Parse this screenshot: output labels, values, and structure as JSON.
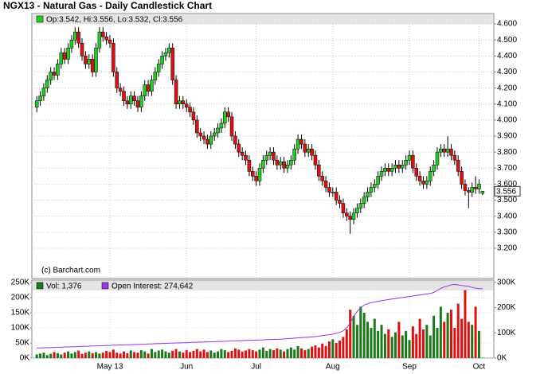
{
  "chart_data": {
    "type": "candlestick",
    "title": "NGX13 - Natural Gas - Daily Candlestick Chart",
    "source": "(c) Barchart.com",
    "legend_text": "Op:3.542, Hi:3.556, Lo:3.532, Cl:3.556",
    "up_color": "#22cc22",
    "down_color": "#e01010",
    "grid": true,
    "x": [
      null,
      null,
      null,
      null,
      null,
      null,
      null,
      null,
      null,
      null,
      null,
      null,
      null,
      null,
      null,
      null,
      null,
      null,
      null,
      null,
      null,
      "May 13",
      null,
      null,
      null,
      null,
      null,
      null,
      null,
      null,
      null,
      null,
      null,
      null,
      null,
      null,
      null,
      null,
      null,
      null,
      null,
      null,
      null,
      "Jun",
      null,
      null,
      null,
      null,
      null,
      null,
      null,
      null,
      null,
      null,
      null,
      null,
      null,
      null,
      null,
      null,
      null,
      null,
      null,
      "Jul",
      null,
      null,
      null,
      null,
      null,
      null,
      null,
      null,
      null,
      null,
      null,
      null,
      null,
      null,
      null,
      null,
      null,
      null,
      null,
      null,
      null,
      "Aug",
      null,
      null,
      null,
      null,
      null,
      null,
      null,
      null,
      null,
      null,
      null,
      null,
      null,
      null,
      null,
      null,
      null,
      null,
      null,
      null,
      null,
      "Sep",
      null,
      null,
      null,
      null,
      null,
      null,
      null,
      null,
      null,
      null,
      null,
      null,
      null,
      null,
      null,
      null,
      null,
      null,
      null,
      "Oct",
      null
    ],
    "open": [
      4.08,
      4.12,
      4.15,
      4.2,
      4.25,
      4.3,
      4.28,
      4.35,
      4.42,
      4.38,
      4.45,
      4.5,
      4.55,
      4.48,
      4.4,
      4.35,
      4.38,
      4.3,
      4.45,
      4.55,
      4.52,
      4.5,
      4.48,
      4.3,
      4.2,
      4.18,
      4.12,
      4.1,
      4.15,
      4.12,
      4.08,
      4.15,
      4.22,
      4.18,
      4.25,
      4.3,
      4.35,
      4.4,
      4.42,
      4.45,
      4.25,
      4.1,
      4.12,
      4.1,
      4.08,
      4.05,
      4.0,
      3.92,
      3.9,
      3.88,
      3.85,
      3.9,
      3.92,
      3.95,
      3.98,
      4.05,
      4.02,
      3.9,
      3.85,
      3.8,
      3.78,
      3.75,
      3.68,
      3.65,
      3.62,
      3.7,
      3.75,
      3.78,
      3.8,
      3.75,
      3.72,
      3.74,
      3.7,
      3.72,
      3.75,
      3.82,
      3.88,
      3.85,
      3.8,
      3.82,
      3.78,
      3.72,
      3.65,
      3.62,
      3.58,
      3.55,
      3.55,
      3.5,
      3.48,
      3.42,
      3.4,
      3.38,
      3.42,
      3.45,
      3.48,
      3.52,
      3.55,
      3.58,
      3.6,
      3.65,
      3.68,
      3.7,
      3.68,
      3.7,
      3.72,
      3.7,
      3.72,
      3.75,
      3.78,
      3.7,
      3.65,
      3.62,
      3.6,
      3.62,
      3.68,
      3.72,
      3.8,
      3.82,
      3.8,
      3.82,
      3.78,
      3.75,
      3.68,
      3.6,
      3.56,
      3.55,
      3.58,
      3.57,
      3.542
    ],
    "high": [
      4.15,
      4.18,
      4.23,
      4.28,
      4.33,
      4.33,
      4.38,
      4.45,
      4.45,
      4.48,
      4.53,
      4.58,
      4.58,
      4.51,
      4.43,
      4.41,
      4.41,
      4.48,
      4.58,
      4.58,
      4.55,
      4.53,
      4.51,
      4.33,
      4.23,
      4.21,
      4.15,
      4.18,
      4.18,
      4.15,
      4.18,
      4.25,
      4.25,
      4.28,
      4.33,
      4.38,
      4.43,
      4.45,
      4.48,
      4.48,
      4.28,
      4.15,
      4.15,
      4.13,
      4.11,
      4.08,
      4.03,
      3.95,
      3.93,
      3.91,
      3.93,
      3.95,
      3.98,
      4.01,
      4.08,
      4.08,
      4.05,
      3.93,
      3.88,
      3.83,
      3.81,
      3.78,
      3.71,
      3.68,
      3.73,
      3.78,
      3.81,
      3.83,
      3.83,
      3.78,
      3.77,
      3.77,
      3.75,
      3.78,
      3.85,
      3.91,
      3.91,
      3.88,
      3.85,
      3.85,
      3.81,
      3.75,
      3.68,
      3.65,
      3.61,
      3.58,
      3.58,
      3.53,
      3.51,
      3.45,
      3.43,
      3.45,
      3.48,
      3.51,
      3.55,
      3.58,
      3.61,
      3.63,
      3.68,
      3.71,
      3.73,
      3.73,
      3.73,
      3.75,
      3.75,
      3.75,
      3.78,
      3.81,
      3.81,
      3.73,
      3.68,
      3.65,
      3.65,
      3.71,
      3.75,
      3.83,
      3.85,
      3.85,
      3.9,
      3.85,
      3.81,
      3.78,
      3.71,
      3.63,
      3.58,
      3.61,
      3.65,
      3.63,
      3.556
    ],
    "low": [
      4.05,
      4.09,
      4.12,
      4.17,
      4.22,
      4.25,
      4.25,
      4.32,
      4.35,
      4.35,
      4.42,
      4.47,
      4.45,
      4.37,
      4.32,
      4.32,
      4.27,
      4.27,
      4.42,
      4.49,
      4.47,
      4.45,
      4.27,
      4.17,
      4.15,
      4.09,
      4.07,
      4.07,
      4.09,
      4.05,
      4.05,
      4.12,
      4.15,
      4.15,
      4.22,
      4.27,
      4.32,
      4.37,
      4.39,
      4.22,
      4.07,
      4.07,
      4.07,
      4.05,
      4.02,
      3.97,
      3.89,
      3.87,
      3.85,
      3.82,
      3.82,
      3.87,
      3.89,
      3.92,
      3.95,
      3.99,
      3.87,
      3.82,
      3.77,
      3.75,
      3.72,
      3.65,
      3.62,
      3.59,
      3.59,
      3.67,
      3.72,
      3.75,
      3.72,
      3.69,
      3.69,
      3.67,
      3.67,
      3.69,
      3.72,
      3.79,
      3.82,
      3.77,
      3.77,
      3.75,
      3.69,
      3.62,
      3.59,
      3.55,
      3.52,
      3.52,
      3.47,
      3.45,
      3.39,
      3.37,
      3.29,
      3.35,
      3.39,
      3.42,
      3.45,
      3.49,
      3.52,
      3.55,
      3.57,
      3.62,
      3.65,
      3.65,
      3.65,
      3.67,
      3.67,
      3.67,
      3.69,
      3.72,
      3.67,
      3.62,
      3.59,
      3.57,
      3.57,
      3.59,
      3.65,
      3.69,
      3.77,
      3.77,
      3.77,
      3.75,
      3.72,
      3.65,
      3.57,
      3.53,
      3.45,
      3.52,
      3.54,
      3.54,
      3.532
    ],
    "close": [
      4.12,
      4.15,
      4.2,
      4.25,
      4.3,
      4.28,
      4.35,
      4.42,
      4.38,
      4.45,
      4.5,
      4.55,
      4.48,
      4.4,
      4.35,
      4.38,
      4.3,
      4.45,
      4.55,
      4.52,
      4.5,
      4.48,
      4.3,
      4.2,
      4.18,
      4.12,
      4.1,
      4.15,
      4.12,
      4.08,
      4.15,
      4.22,
      4.18,
      4.25,
      4.3,
      4.35,
      4.4,
      4.42,
      4.45,
      4.25,
      4.1,
      4.12,
      4.1,
      4.08,
      4.05,
      4.0,
      3.92,
      3.9,
      3.88,
      3.85,
      3.9,
      3.92,
      3.95,
      3.98,
      4.05,
      4.02,
      3.9,
      3.85,
      3.8,
      3.78,
      3.75,
      3.68,
      3.65,
      3.62,
      3.7,
      3.75,
      3.78,
      3.8,
      3.75,
      3.72,
      3.74,
      3.7,
      3.72,
      3.75,
      3.82,
      3.88,
      3.85,
      3.8,
      3.82,
      3.78,
      3.72,
      3.65,
      3.62,
      3.58,
      3.55,
      3.55,
      3.5,
      3.48,
      3.42,
      3.4,
      3.38,
      3.42,
      3.45,
      3.48,
      3.52,
      3.55,
      3.58,
      3.6,
      3.65,
      3.68,
      3.7,
      3.68,
      3.7,
      3.72,
      3.7,
      3.72,
      3.75,
      3.78,
      3.7,
      3.65,
      3.62,
      3.6,
      3.62,
      3.68,
      3.72,
      3.8,
      3.82,
      3.8,
      3.82,
      3.78,
      3.75,
      3.68,
      3.6,
      3.56,
      3.55,
      3.58,
      3.57,
      3.6,
      3.556
    ],
    "ylim": [
      3.011,
      4.665
    ],
    "yticks": [
      {
        "value": 3.2,
        "label": "3.200"
      },
      {
        "value": 3.3,
        "label": "3.300"
      },
      {
        "value": 3.4,
        "label": "3.400"
      },
      {
        "value": 3.5,
        "label": "3.500"
      },
      {
        "value": 3.6,
        "label": "3.600"
      },
      {
        "value": 3.7,
        "label": "3.700"
      },
      {
        "value": 3.8,
        "label": "3.800"
      },
      {
        "value": 3.9,
        "label": "3.900"
      },
      {
        "value": 4.0,
        "label": "4.000"
      },
      {
        "value": 4.1,
        "label": "4.100"
      },
      {
        "value": 4.2,
        "label": "4.200"
      },
      {
        "value": 4.3,
        "label": "4.300"
      },
      {
        "value": 4.4,
        "label": "4.400"
      },
      {
        "value": 4.5,
        "label": "4.500"
      },
      {
        "value": 4.6,
        "label": "4.600"
      }
    ],
    "volume": {
      "name": "Vol: 1,376",
      "color": "#1a7a1a",
      "ylim": [
        0,
        258000
      ],
      "yticks": [
        {
          "value": 0,
          "label": "0K"
        },
        {
          "value": 50000,
          "label": "50K"
        },
        {
          "value": 100000,
          "label": "100K"
        },
        {
          "value": 150000,
          "label": "150K"
        },
        {
          "value": 200000,
          "label": "200K"
        },
        {
          "value": 250000,
          "label": "250K"
        }
      ],
      "values": [
        12000,
        15000,
        18000,
        10000,
        14000,
        20000,
        16000,
        12000,
        18000,
        22000,
        15000,
        20000,
        25000,
        14000,
        18000,
        22000,
        16000,
        20000,
        15000,
        18000,
        24000,
        20000,
        28000,
        18000,
        15000,
        22000,
        16000,
        25000,
        20000,
        18000,
        26000,
        22000,
        15000,
        30000,
        20000,
        25000,
        28000,
        22000,
        18000,
        24000,
        30000,
        22000,
        18000,
        26000,
        20000,
        24000,
        30000,
        22000,
        28000,
        20000,
        25000,
        18000,
        22000,
        30000,
        26000,
        20000,
        24000,
        32000,
        28000,
        22000,
        25000,
        30000,
        26000,
        22000,
        28000,
        35000,
        24000,
        30000,
        26000,
        32000,
        28000,
        22000,
        30000,
        35000,
        28000,
        40000,
        32000,
        26000,
        30000,
        38000,
        42000,
        35000,
        48000,
        40000,
        55000,
        62000,
        50000,
        58000,
        70000,
        95000,
        160000,
        140000,
        110000,
        170000,
        150000,
        120000,
        100000,
        130000,
        90000,
        110000,
        80000,
        95000,
        70000,
        85000,
        120000,
        75000,
        90000,
        60000,
        105000,
        80000,
        130000,
        95000,
        110000,
        75000,
        140000,
        100000,
        170000,
        120000,
        150000,
        160000,
        100000,
        180000,
        130000,
        225000,
        120000,
        110000,
        170000,
        90000,
        1376
      ]
    },
    "open_interest": {
      "name": "Open Interest: 274,642",
      "color": "#9933ee",
      "axis": "y2",
      "y2lim": [
        0,
        309000
      ],
      "y2ticks": [
        {
          "value": 0,
          "label": "0K"
        },
        {
          "value": 100000,
          "label": "100K"
        },
        {
          "value": 200000,
          "label": "200K"
        },
        {
          "value": 300000,
          "label": "300K"
        }
      ],
      "values": [
        40000,
        40000,
        41000,
        41000,
        42000,
        42000,
        43000,
        43000,
        44000,
        44000,
        45000,
        45000,
        46000,
        46000,
        47000,
        47000,
        48000,
        48000,
        49000,
        49000,
        50000,
        50000,
        51000,
        51000,
        52000,
        52000,
        53000,
        53000,
        54000,
        54000,
        55000,
        55000,
        56000,
        56000,
        57000,
        57000,
        58000,
        58000,
        59000,
        59000,
        60000,
        60000,
        61000,
        61000,
        62000,
        62000,
        63000,
        63000,
        64000,
        64000,
        65000,
        65000,
        66000,
        66000,
        67000,
        67000,
        68000,
        68000,
        69000,
        69000,
        70000,
        70000,
        71000,
        71000,
        72000,
        72000,
        73000,
        73000,
        74000,
        74000,
        75000,
        76000,
        77000,
        78000,
        79000,
        80000,
        81000,
        82000,
        83000,
        84000,
        85000,
        87000,
        89000,
        91000,
        93000,
        95000,
        98000,
        102000,
        108000,
        120000,
        140000,
        165000,
        185000,
        200000,
        210000,
        215000,
        220000,
        222000,
        225000,
        228000,
        230000,
        232000,
        234000,
        236000,
        238000,
        240000,
        242000,
        244000,
        246000,
        248000,
        250000,
        252000,
        254000,
        256000,
        260000,
        268000,
        276000,
        282000,
        286000,
        290000,
        292000,
        290000,
        288000,
        286000,
        284000,
        280000,
        277000,
        275000,
        274642
      ]
    }
  }
}
